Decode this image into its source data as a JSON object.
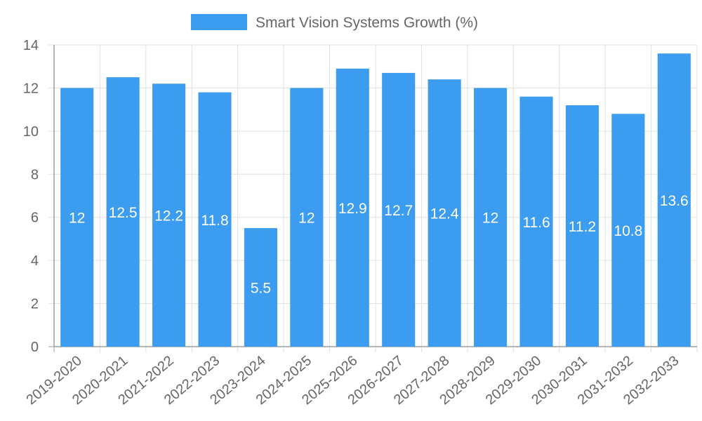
{
  "chart_data": {
    "type": "bar",
    "categories": [
      "2019-2020",
      "2020-2021",
      "2021-2022",
      "2022-2023",
      "2023-2024",
      "2024-2025",
      "2025-2026",
      "2026-2027",
      "2027-2028",
      "2028-2029",
      "2029-2030",
      "2030-2031",
      "2031-2032",
      "2032-2033"
    ],
    "series": [
      {
        "name": "Smart Vision Systems Growth (%)",
        "values": [
          12,
          12.5,
          12.2,
          11.8,
          5.5,
          12,
          12.9,
          12.7,
          12.4,
          12,
          11.6,
          11.2,
          10.8,
          13.6
        ],
        "color": "#3b9cf0"
      }
    ],
    "ylim": [
      0,
      14
    ],
    "yticks": [
      0,
      2,
      4,
      6,
      8,
      10,
      12,
      14
    ],
    "grid": true,
    "legend": "top-center",
    "data_labels": "center",
    "xlabel": "",
    "ylabel": "",
    "title": ""
  }
}
